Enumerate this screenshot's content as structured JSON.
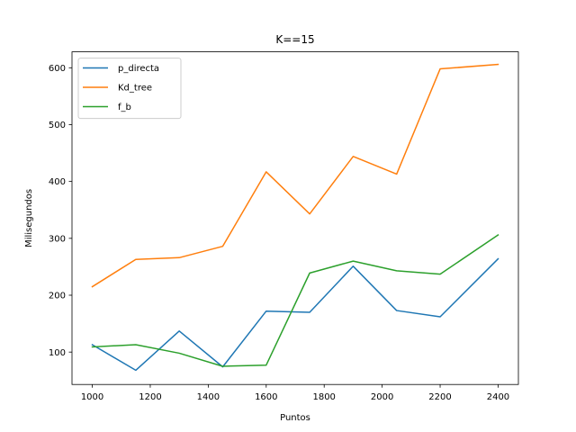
{
  "chart_data": {
    "type": "line",
    "title": "K==15",
    "xlabel": "Puntos",
    "ylabel": "Milisegundos",
    "x": [
      1000,
      1150,
      1300,
      1450,
      1600,
      1750,
      1900,
      2050,
      2200,
      2400
    ],
    "xlim": [
      930,
      2470
    ],
    "ylim": [
      43,
      628
    ],
    "xticks": [
      1000,
      1200,
      1400,
      1600,
      1800,
      2000,
      2200,
      2400
    ],
    "yticks": [
      100,
      200,
      300,
      400,
      500,
      600
    ],
    "grid": false,
    "legend_position": "top-left",
    "series": [
      {
        "name": "p_directa",
        "color": "#1f77b4",
        "values": [
          113,
          68,
          137,
          74,
          172,
          170,
          251,
          173,
          162,
          264
        ]
      },
      {
        "name": "Kd_tree",
        "color": "#ff7f0e",
        "values": [
          215,
          263,
          266,
          286,
          417,
          343,
          444,
          413,
          598,
          606
        ]
      },
      {
        "name": "f_b",
        "color": "#2ca02c",
        "values": [
          109,
          113,
          98,
          75,
          77,
          239,
          260,
          243,
          237,
          306
        ]
      }
    ]
  }
}
